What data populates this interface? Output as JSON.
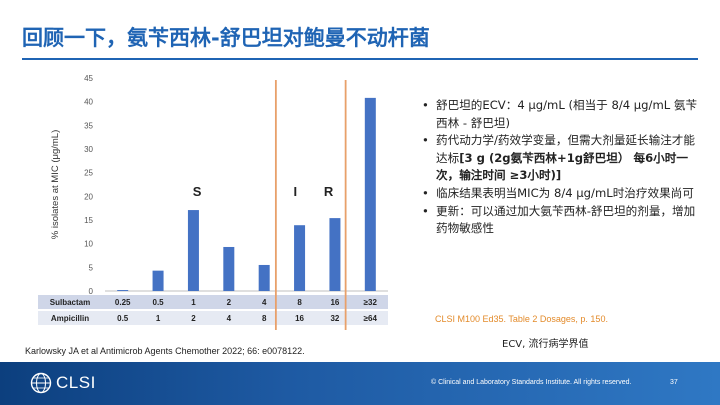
{
  "title": "回顾一下，氨苄西林-舒巴坦对鲍曼不动杆菌",
  "chart_data": {
    "type": "bar",
    "ylabel": "% isolates at MIC (μg/mL)",
    "ylim": [
      0,
      45
    ],
    "yticks": [
      0,
      5,
      10,
      15,
      20,
      25,
      30,
      35,
      40,
      45
    ],
    "grid": false,
    "categories": [
      "0.25/0.5",
      "0.5/1",
      "1/2",
      "2/4",
      "4/8",
      "8/16",
      "16/32",
      "≥32/≥64"
    ],
    "values": [
      0.2,
      4.3,
      17.1,
      9.3,
      5.5,
      13.9,
      15.4,
      40.8
    ],
    "bar_color": "#4472c4",
    "breakpoint_line_color": "#e8a06a",
    "region_labels": [
      "S",
      "I",
      "R"
    ],
    "table_rows": [
      {
        "label": "Sulbactam",
        "values": [
          "0.25",
          "0.5",
          "1",
          "2",
          "4",
          "8",
          "16",
          "≥32"
        ]
      },
      {
        "label": "Ampicillin",
        "values": [
          "0.5",
          "1",
          "2",
          "4",
          "8",
          "16",
          "32",
          "≥64"
        ]
      }
    ]
  },
  "bullets": {
    "b1": "舒巴坦的ECV：4 μg/mL (相当于 8/4 μg/mL  氨苄西林 - 舒巴坦)",
    "b2_normal": "药代动力学/药效学变量，但需大剂量延长输注才能达标",
    "b2_bold": "[3 g (2g氨苄西林+1g舒巴坦） 每6小时一次，输注时间 ≥3小时)]",
    "b3": "临床结果表明当MIC为 8/4 μg/mL时治疗效果尚可",
    "b4": "更新：可以通过加大氨苄西林-舒巴坦的剂量，增加药物敏感性"
  },
  "ref_right": "CLSI M100 Ed35. Table 2 Dosages, p. 150.",
  "ecv_note": "ECV, 流行病学界值",
  "ref_left": "Karlowsky JA et al Antimicrob Agents Chemother 2022; 66: e0078122.",
  "footer": {
    "logo_text": "CLSI",
    "copyright": "© Clinical and Laboratory Standards Institute. All rights reserved.",
    "page": "37"
  }
}
